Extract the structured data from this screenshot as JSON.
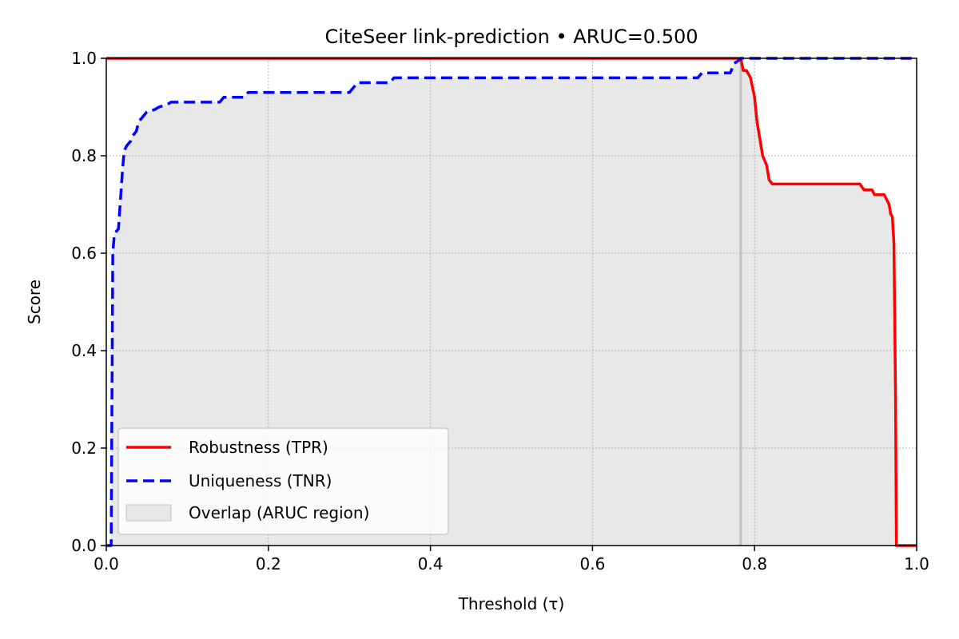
{
  "chart_data": {
    "type": "line",
    "title": "CiteSeer link-prediction • ARUC=0.500",
    "xlabel": "Threshold (τ)",
    "ylabel": "Score",
    "xlim": [
      0,
      1
    ],
    "ylim": [
      0,
      1
    ],
    "xticks": [
      0.0,
      0.2,
      0.4,
      0.6,
      0.8,
      1.0
    ],
    "xtick_labels": [
      "0.0",
      "0.2",
      "0.4",
      "0.6",
      "0.8",
      "1.0"
    ],
    "yticks": [
      0.0,
      0.2,
      0.4,
      0.6,
      0.8,
      1.0
    ],
    "ytick_labels": [
      "0.0",
      "0.2",
      "0.4",
      "0.6",
      "0.8",
      "1.0"
    ],
    "grid": true,
    "legend_position": "lower-left",
    "crossover_x": 0.783,
    "series": [
      {
        "name": "Robustness (TPR)",
        "color": "#ff0000",
        "style": "solid",
        "points": [
          [
            0,
            1.0
          ],
          [
            0.783,
            1.0
          ],
          [
            0.786,
            0.975
          ],
          [
            0.79,
            0.975
          ],
          [
            0.795,
            0.96
          ],
          [
            0.8,
            0.92
          ],
          [
            0.803,
            0.87
          ],
          [
            0.806,
            0.84
          ],
          [
            0.81,
            0.8
          ],
          [
            0.815,
            0.78
          ],
          [
            0.818,
            0.75
          ],
          [
            0.822,
            0.742
          ],
          [
            0.93,
            0.742
          ],
          [
            0.935,
            0.73
          ],
          [
            0.945,
            0.73
          ],
          [
            0.948,
            0.72
          ],
          [
            0.96,
            0.72
          ],
          [
            0.963,
            0.71
          ],
          [
            0.966,
            0.7
          ],
          [
            0.968,
            0.68
          ],
          [
            0.97,
            0.675
          ],
          [
            0.972,
            0.62
          ],
          [
            0.974,
            0.3
          ],
          [
            0.975,
            0.0
          ],
          [
            1.0,
            0.0
          ]
        ]
      },
      {
        "name": "Uniqueness (TNR)",
        "color": "#0000ff",
        "style": "dashed",
        "points": [
          [
            0,
            0.0
          ],
          [
            0.006,
            0.0
          ],
          [
            0.007,
            0.3
          ],
          [
            0.008,
            0.6
          ],
          [
            0.01,
            0.64
          ],
          [
            0.015,
            0.65
          ],
          [
            0.02,
            0.77
          ],
          [
            0.022,
            0.81
          ],
          [
            0.025,
            0.82
          ],
          [
            0.03,
            0.83
          ],
          [
            0.032,
            0.84
          ],
          [
            0.037,
            0.85
          ],
          [
            0.04,
            0.87
          ],
          [
            0.045,
            0.88
          ],
          [
            0.05,
            0.89
          ],
          [
            0.06,
            0.895
          ],
          [
            0.065,
            0.9
          ],
          [
            0.075,
            0.905
          ],
          [
            0.08,
            0.91
          ],
          [
            0.14,
            0.91
          ],
          [
            0.145,
            0.92
          ],
          [
            0.17,
            0.92
          ],
          [
            0.175,
            0.93
          ],
          [
            0.3,
            0.93
          ],
          [
            0.305,
            0.94
          ],
          [
            0.31,
            0.95
          ],
          [
            0.35,
            0.95
          ],
          [
            0.355,
            0.96
          ],
          [
            0.73,
            0.96
          ],
          [
            0.735,
            0.97
          ],
          [
            0.77,
            0.97
          ],
          [
            0.775,
            0.99
          ],
          [
            0.78,
            0.995
          ],
          [
            0.783,
            1.0
          ],
          [
            1.0,
            1.0
          ]
        ]
      }
    ],
    "overlap_label": "Overlap (ARUC region)",
    "colors": {
      "overlap_fill": "#e8e8e8",
      "overlap_edge": "#c0c0c0",
      "grid": "#b0b0b0"
    }
  }
}
